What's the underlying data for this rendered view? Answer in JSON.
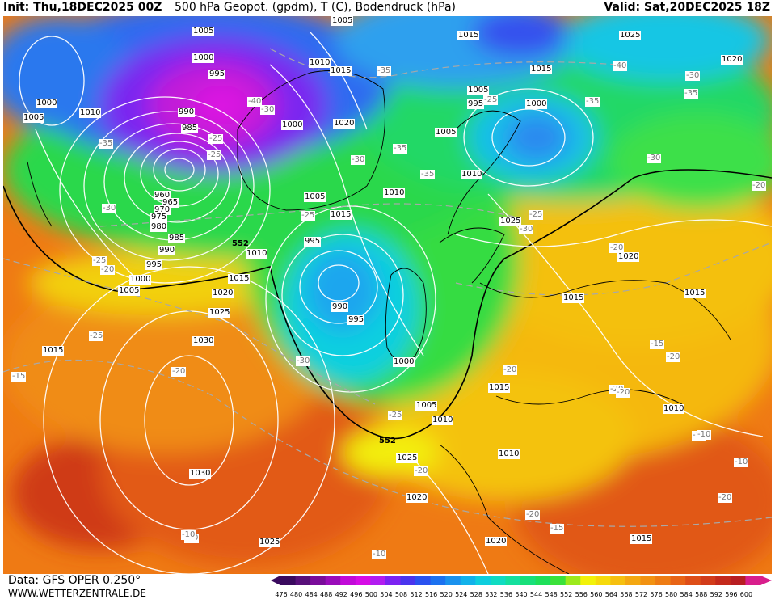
{
  "header": {
    "init": "Init: Thu,18DEC2025 00Z",
    "title": "500 hPa Geopot. (gpdm), T (C), Bodendruck (hPa)",
    "valid": "Valid: Sat,20DEC2025 18Z"
  },
  "footer": {
    "data_source": "Data: GFS OPER 0.250°",
    "website": "WWW.WETTERZENTRALE.DE"
  },
  "colorbar": {
    "ticks": [
      "476",
      "480",
      "484",
      "488",
      "492",
      "496",
      "500",
      "504",
      "508",
      "512",
      "516",
      "520",
      "524",
      "528",
      "532",
      "536",
      "540",
      "544",
      "548",
      "552",
      "556",
      "560",
      "564",
      "568",
      "572",
      "576",
      "580",
      "584",
      "588",
      "592",
      "596",
      "600"
    ],
    "colors": [
      "#3a0a5e",
      "#58107a",
      "#7a0c9a",
      "#9a0cba",
      "#c10ad8",
      "#d60ce6",
      "#b21cf0",
      "#7c22f2",
      "#4a34ee",
      "#2a52f0",
      "#1c72f0",
      "#1a92ee",
      "#12b2ea",
      "#0ecede",
      "#10dcc2",
      "#14e09e",
      "#18e07a",
      "#1ee05a",
      "#3ae23a",
      "#9cea1c",
      "#f2f20a",
      "#f6da0c",
      "#f6c010",
      "#f4a812",
      "#f29212",
      "#ee7c14",
      "#e86416",
      "#de4e18",
      "#d23c1a",
      "#c42a1c",
      "#b81e22",
      "#d81e8c"
    ]
  },
  "pressure_labels": [
    "1005",
    "1005",
    "1000",
    "1000",
    "1005",
    "1010",
    "995",
    "990",
    "985",
    "960",
    "965",
    "970",
    "975",
    "980",
    "985",
    "990",
    "995",
    "1000",
    "1005",
    "1010",
    "1015",
    "1020",
    "1025",
    "1030",
    "1030",
    "1025",
    "1015",
    "1010",
    "1015",
    "1020",
    "1000",
    "1005",
    "1010",
    "1015",
    "995",
    "990",
    "995",
    "1000",
    "1005",
    "1010",
    "1015",
    "1020",
    "1025",
    "1010",
    "1005",
    "995",
    "1000",
    "1005",
    "1010",
    "1025",
    "1015",
    "1020",
    "1025",
    "1020",
    "1015",
    "1015",
    "1010",
    "1015",
    "1020",
    "1015"
  ],
  "temperature_labels": [
    "-35",
    "-30",
    "-25",
    "-20",
    "-25",
    "-35",
    "-40",
    "-30",
    "-35",
    "-30",
    "-25",
    "-35",
    "-30",
    "-35",
    "-25",
    "-40",
    "-35",
    "-30",
    "-25",
    "-20",
    "-25",
    "-30",
    "-20",
    "-30",
    "-25",
    "-20",
    "-15",
    "-10",
    "-20",
    "-15",
    "-10",
    "-10",
    "-20",
    "-25",
    "-15",
    "-20",
    "-15",
    "-10",
    "-20",
    "-20",
    "-20",
    "-20",
    "-10"
  ],
  "height_labels": [
    "552",
    "552"
  ],
  "scale_font_size_label": ""
}
